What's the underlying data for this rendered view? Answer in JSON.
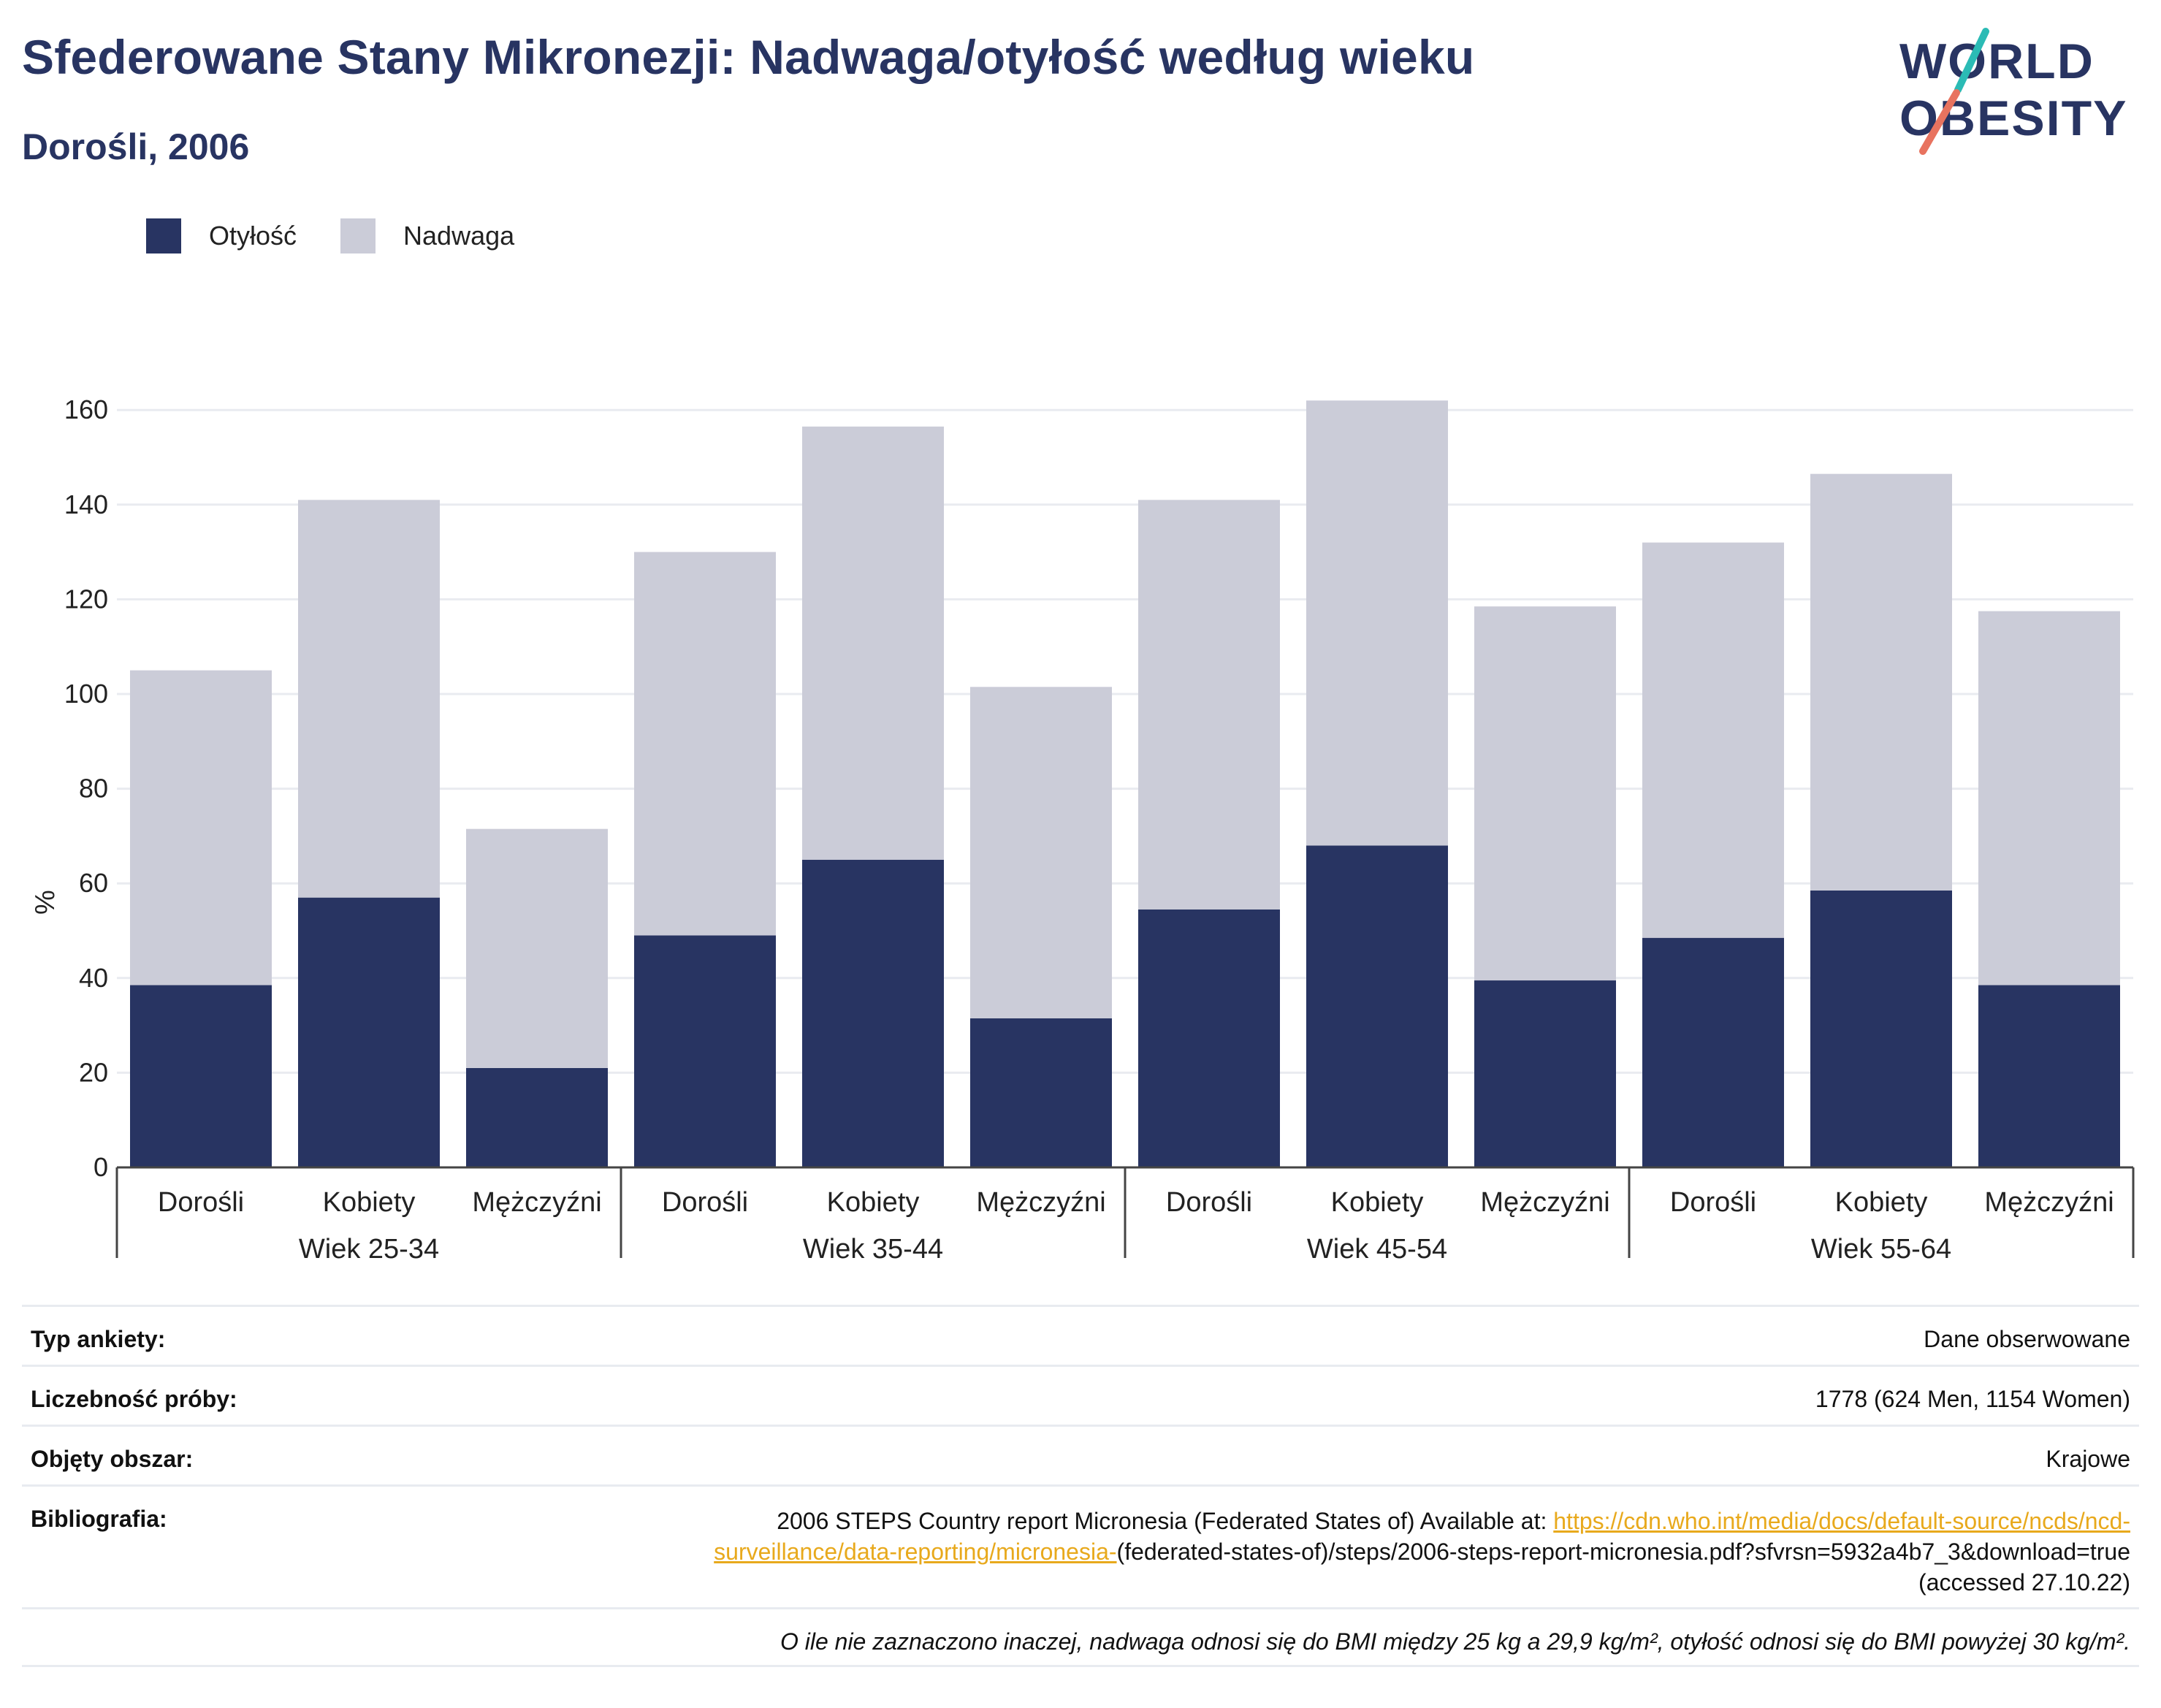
{
  "title": "Sfederowane Stany Mikronezji: Nadwaga/otyłość według wieku",
  "subtitle": "Dorośli, 2006",
  "logo": {
    "line1": "WORLD",
    "line2": "OBESITY"
  },
  "legend": [
    {
      "label": "Otyłość",
      "color": "#283462"
    },
    {
      "label": "Nadwaga",
      "color": "#cbccd8"
    }
  ],
  "chart_data": {
    "type": "bar",
    "stacked": true,
    "ylabel": "%",
    "ylim": [
      0,
      170
    ],
    "yticks": [
      0,
      20,
      40,
      60,
      80,
      100,
      120,
      140,
      160
    ],
    "grid": true,
    "legend_position": "top-left",
    "groups": [
      {
        "label": "Wiek 25-34",
        "categories": [
          "Dorośli",
          "Kobiety",
          "Mężczyźni"
        ]
      },
      {
        "label": "Wiek 35-44",
        "categories": [
          "Dorośli",
          "Kobiety",
          "Mężczyźni"
        ]
      },
      {
        "label": "Wiek 45-54",
        "categories": [
          "Dorośli",
          "Kobiety",
          "Mężczyźni"
        ]
      },
      {
        "label": "Wiek 55-64",
        "categories": [
          "Dorośli",
          "Kobiety",
          "Mężczyźni"
        ]
      }
    ],
    "series": [
      {
        "name": "Otyłość",
        "color": "#283462",
        "values": [
          38.5,
          57,
          21,
          49,
          65,
          31.5,
          54.5,
          68,
          39.5,
          48.5,
          58.5,
          38.5
        ]
      },
      {
        "name": "Nadwaga",
        "color": "#cbccd8",
        "values": [
          66.5,
          84,
          50.5,
          81,
          91.5,
          70,
          86.5,
          94,
          79,
          83.5,
          88,
          79
        ]
      }
    ]
  },
  "info": {
    "survey_type_label": "Typ ankiety:",
    "survey_type_value": "Dane obserwowane",
    "sample_label": "Liczebność próby:",
    "sample_value": "1778 (624 Men, 1154 Women)",
    "area_label": "Objęty obszar:",
    "area_value": "Krajowe",
    "biblio_label": "Bibliografia:",
    "biblio_text": "2006 STEPS Country report Micronesia (Federated States of) Available at: ",
    "biblio_link": "https://cdn.who.int/media/docs/default-source/ncds/ncd-surveillance/data-reporting/micronesia-",
    "biblio_tail": "(federated-states-of)/steps/2006-steps-report-micronesia.pdf?sfvrsn=5932a4b7_3&download=true (accessed 27.10.22)",
    "note": "O ile nie zaznaczono inaczej, nadwaga odnosi się do BMI między 25 kg a 29,9 kg/m², otyłość odnosi się do BMI powyżej 30 kg/m²."
  }
}
